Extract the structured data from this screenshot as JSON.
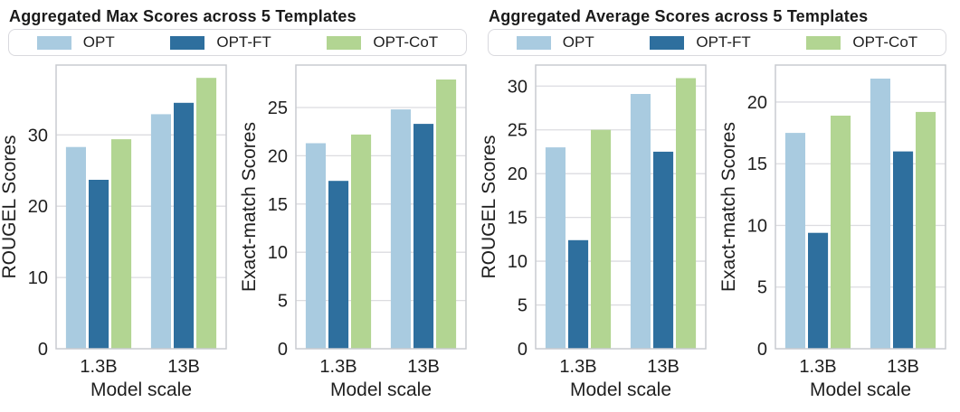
{
  "colors": {
    "series": {
      "OPT": "#a9cbe0",
      "OPT-FT": "#2e6f9e",
      "OPT-CoT": "#b2d592"
    },
    "grid": "#dcdce0",
    "spine": "#c9cbd0",
    "text": "#1f1f1f"
  },
  "figures": [
    {
      "title": "Aggregated Max Scores across 5 Templates",
      "legend": [
        "OPT",
        "OPT-FT",
        "OPT-CoT"
      ]
    },
    {
      "title": "Aggregated Average Scores across 5 Templates",
      "legend": [
        "OPT",
        "OPT-FT",
        "OPT-CoT"
      ]
    }
  ],
  "chart_data": [
    {
      "type": "bar",
      "figure": "Aggregated Max Scores across 5 Templates",
      "categories": [
        "1.3B",
        "13B"
      ],
      "series": [
        {
          "name": "OPT",
          "values": [
            28.3,
            32.9
          ]
        },
        {
          "name": "OPT-FT",
          "values": [
            23.7,
            34.5
          ]
        },
        {
          "name": "OPT-CoT",
          "values": [
            29.4,
            38.0
          ]
        }
      ],
      "xlabel": "Model scale",
      "ylabel": "ROUGEL Scores",
      "ylim": [
        0,
        39.8
      ],
      "yticks": [
        0,
        10,
        20,
        30
      ],
      "grid": "horizontal",
      "legend_position": "above-figure"
    },
    {
      "type": "bar",
      "figure": "Aggregated Max Scores across 5 Templates",
      "categories": [
        "1.3B",
        "13B"
      ],
      "series": [
        {
          "name": "OPT",
          "values": [
            21.3,
            24.8
          ]
        },
        {
          "name": "OPT-FT",
          "values": [
            17.4,
            23.3
          ]
        },
        {
          "name": "OPT-CoT",
          "values": [
            22.2,
            27.9
          ]
        }
      ],
      "xlabel": "Model scale",
      "ylabel": "Exact-match Scores",
      "ylim": [
        0,
        29.4
      ],
      "yticks": [
        0,
        5,
        10,
        15,
        20,
        25
      ],
      "grid": "horizontal",
      "legend_position": "above-figure"
    },
    {
      "type": "bar",
      "figure": "Aggregated Average Scores across 5 Templates",
      "categories": [
        "1.3B",
        "13B"
      ],
      "series": [
        {
          "name": "OPT",
          "values": [
            23.0,
            29.1
          ]
        },
        {
          "name": "OPT-FT",
          "values": [
            12.4,
            22.5
          ]
        },
        {
          "name": "OPT-CoT",
          "values": [
            25.0,
            30.9
          ]
        }
      ],
      "xlabel": "Model scale",
      "ylabel": "ROUGEL Scores",
      "ylim": [
        0,
        32.4
      ],
      "yticks": [
        0,
        5,
        10,
        15,
        20,
        25,
        30
      ],
      "grid": "horizontal",
      "legend_position": "above-figure"
    },
    {
      "type": "bar",
      "figure": "Aggregated Average Scores across 5 Templates",
      "categories": [
        "1.3B",
        "13B"
      ],
      "series": [
        {
          "name": "OPT",
          "values": [
            17.5,
            21.9
          ]
        },
        {
          "name": "OPT-FT",
          "values": [
            9.4,
            16.0
          ]
        },
        {
          "name": "OPT-CoT",
          "values": [
            18.9,
            19.2
          ]
        }
      ],
      "xlabel": "Model scale",
      "ylabel": "Exact-match Scores",
      "ylim": [
        0,
        23.0
      ],
      "yticks": [
        0,
        5,
        10,
        15,
        20
      ],
      "grid": "horizontal",
      "legend_position": "above-figure"
    }
  ]
}
